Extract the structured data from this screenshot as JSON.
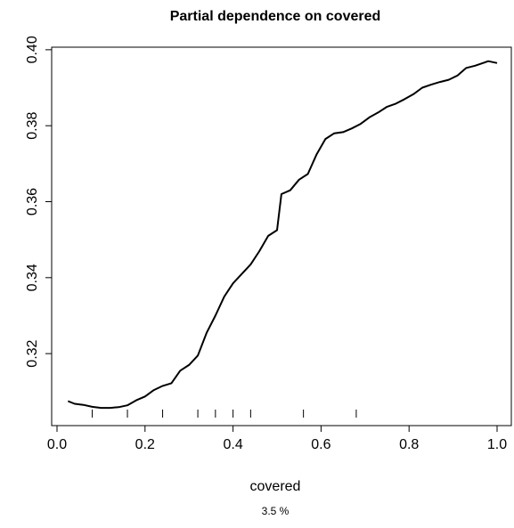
{
  "chart_data": {
    "type": "line",
    "title": "Partial dependence on covered",
    "xlabel": "covered",
    "subtitle": "3.5 %",
    "xlim": [
      0.0,
      1.0
    ],
    "ylim": [
      0.3055,
      0.3995
    ],
    "x_ticks": [
      "0.0",
      "0.2",
      "0.4",
      "0.6",
      "0.8",
      "1.0"
    ],
    "y_ticks": [
      "0.32",
      "0.34",
      "0.36",
      "0.38",
      "0.40"
    ],
    "rug": [
      0.08,
      0.16,
      0.24,
      0.32,
      0.36,
      0.4,
      0.44,
      0.56,
      0.68
    ],
    "series": [
      {
        "x": [
          0.025,
          0.04,
          0.06,
          0.08,
          0.1,
          0.12,
          0.14,
          0.16,
          0.18,
          0.2,
          0.22,
          0.24,
          0.26,
          0.28,
          0.3,
          0.32,
          0.34,
          0.36,
          0.38,
          0.4,
          0.42,
          0.44,
          0.46,
          0.48,
          0.5,
          0.51,
          0.53,
          0.55,
          0.57,
          0.59,
          0.61,
          0.63,
          0.65,
          0.67,
          0.69,
          0.71,
          0.73,
          0.75,
          0.77,
          0.79,
          0.81,
          0.83,
          0.85,
          0.87,
          0.89,
          0.91,
          0.93,
          0.95,
          0.97,
          0.98,
          1.0
        ],
        "y": [
          0.3075,
          0.3068,
          0.3065,
          0.306,
          0.3057,
          0.3057,
          0.3059,
          0.3064,
          0.3077,
          0.3087,
          0.3104,
          0.3115,
          0.3122,
          0.3155,
          0.317,
          0.3195,
          0.3255,
          0.33,
          0.335,
          0.3385,
          0.341,
          0.3435,
          0.347,
          0.351,
          0.3525,
          0.362,
          0.363,
          0.3658,
          0.3673,
          0.3725,
          0.3765,
          0.378,
          0.3783,
          0.3793,
          0.3805,
          0.3822,
          0.3835,
          0.385,
          0.3858,
          0.387,
          0.3883,
          0.39,
          0.3908,
          0.3915,
          0.3921,
          0.3932,
          0.3952,
          0.3958,
          0.3966,
          0.397,
          0.3965
        ]
      }
    ]
  }
}
